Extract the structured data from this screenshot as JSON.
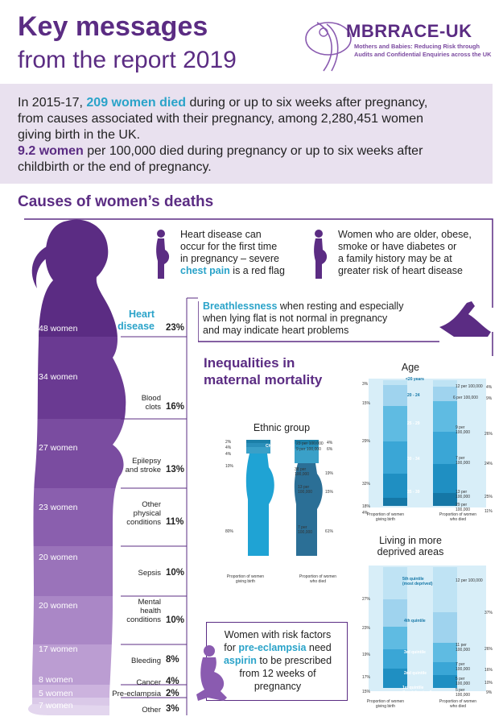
{
  "header": {
    "title_line1": "Key messages",
    "title_line2": "from the report 2019"
  },
  "logo": {
    "name": "MBRRACE-UK",
    "subtitle_line1": "Mothers and Babies: Reducing Risk through",
    "subtitle_line2": "Audits and Confidential Enquiries across the UK"
  },
  "summary": {
    "l1a": "In 2015-17, ",
    "l1b": "209 women died",
    "l1c": " during or up to six weeks after pregnancy,",
    "l2": "from causes associated with their pregnancy, among 2,280,451 women",
    "l3": "giving birth in the UK.",
    "l4a": "9.2 women",
    "l4b": " per 100,000 died during pregnancy or up to six weeks after",
    "l5": "childbirth or the end of pregnancy."
  },
  "causes": {
    "heading": "Causes of women’s deaths",
    "items": [
      {
        "women": "48 women",
        "label": "Heart disease",
        "pct": "23%"
      },
      {
        "women": "34 women",
        "label": "Blood clots",
        "pct": "16%"
      },
      {
        "women": "27 women",
        "label": "Epilepsy and stroke",
        "pct": "13%"
      },
      {
        "women": "23 women",
        "label": "Other physical conditions",
        "pct": "11%"
      },
      {
        "women": "20 women",
        "label": "Sepsis",
        "pct": "10%"
      },
      {
        "women": "20 women",
        "label": "Mental health conditions",
        "pct": "10%"
      },
      {
        "women": "17 women",
        "label": "Bleeding",
        "pct": "8%"
      },
      {
        "women": "8 women",
        "label": "Cancer",
        "pct": "4%"
      },
      {
        "women": "5 women",
        "label": "Pre-eclampsia",
        "pct": "2%"
      },
      {
        "women": "7 women",
        "label": "Other",
        "pct": "3%"
      }
    ],
    "labels_split": {
      "heart_1": "Heart",
      "heart_2": "disease",
      "clots_1": "Blood",
      "clots_2": "clots",
      "epi_1": "Epilepsy",
      "epi_2": "and stroke",
      "oth_1": "Other",
      "oth_2": "physical",
      "oth_3": "conditions",
      "mh_1": "Mental",
      "mh_2": "health",
      "mh_3": "conditions"
    }
  },
  "tips": {
    "t1_1": "Heart disease can",
    "t1_2": "occur for the first time",
    "t1_3": "in pregnancy – severe",
    "t1_4b": "chest pain",
    "t1_4c": " is a red flag",
    "t2_1": "Women who are older, obese,",
    "t2_2": "smoke or have diabetes or",
    "t2_3": "a family history may be at",
    "t2_4": "greater risk of heart disease",
    "t3_1b": "Breathlessness",
    "t3_1c": " when resting and especially",
    "t3_2": "when lying flat is not normal in pregnancy",
    "t3_3": "and may indicate heart problems"
  },
  "inequalities": {
    "heading_1": "Inequalities in",
    "heading_2": "maternal mortality"
  },
  "ethnic": {
    "title": "Ethnic group",
    "groups": [
      "Mixed",
      "Chinese/other",
      "Black",
      "Asian",
      "White"
    ],
    "birth_pct": [
      "2%",
      "4%",
      "4%",
      "10%",
      "80%"
    ],
    "died_pct": [
      "4%",
      "6%",
      "19%",
      "15%",
      "61%"
    ],
    "rates": [
      "23 per 100,000",
      "9 per 100,000",
      "38 per 100,000",
      "13 per 100,000",
      "7 per 100,000"
    ],
    "axis_left": "Proportion of women giving birth",
    "axis_right": "Proportion of women who died"
  },
  "age": {
    "title": "Age",
    "groups": [
      "<20 years",
      "20 - 24",
      "25 - 29",
      "30 - 34",
      "35 - 39",
      "≥40"
    ],
    "birth_pct": [
      "3%",
      "15%",
      "29%",
      "32%",
      "18%",
      "4%"
    ],
    "died_pct": [
      "4%",
      "9%",
      "26%",
      "24%",
      "25%",
      "11%"
    ],
    "rates": [
      "12 per 100,000",
      "6 per 100,000",
      "9 per 100,000",
      "7 per 100,000",
      "13 per 100,000",
      "29 per 100,000"
    ],
    "axis_left": "Proportion of women giving birth",
    "axis_right": "Proportion of women who died"
  },
  "deprivation": {
    "title_1": "Living in more",
    "title_2": "deprived areas",
    "groups": [
      "5th quintile (most deprived)",
      "4th quintile",
      "3rd quintile",
      "2nd quintile",
      "1st quintile (least deprived)"
    ],
    "birth_pct": [
      "27%",
      "23%",
      "19%",
      "17%",
      "15%"
    ],
    "died_pct": [
      "37%",
      "26%",
      "16%",
      "10%",
      "9%"
    ],
    "rates": [
      "12 per 100,000",
      "11 per 100,000",
      "7 per 100,000",
      "5 per 100,000",
      "5 per 100,000"
    ],
    "axis_left": "Proportion of women giving birth",
    "axis_right": "Proportion of women who died"
  },
  "aspirin": {
    "l1": "Women with risk factors",
    "l2a": "for ",
    "l2b": "pre-eclampsia",
    "l2c": " need",
    "l3b": "aspirin",
    "l3c": " to be prescribed",
    "l4": "from 12 weeks of",
    "l5": "pregnancy"
  },
  "colors": {
    "purple": "#5b2c83",
    "teal": "#2aa3c9",
    "light_purple": "#e9e1ef"
  }
}
